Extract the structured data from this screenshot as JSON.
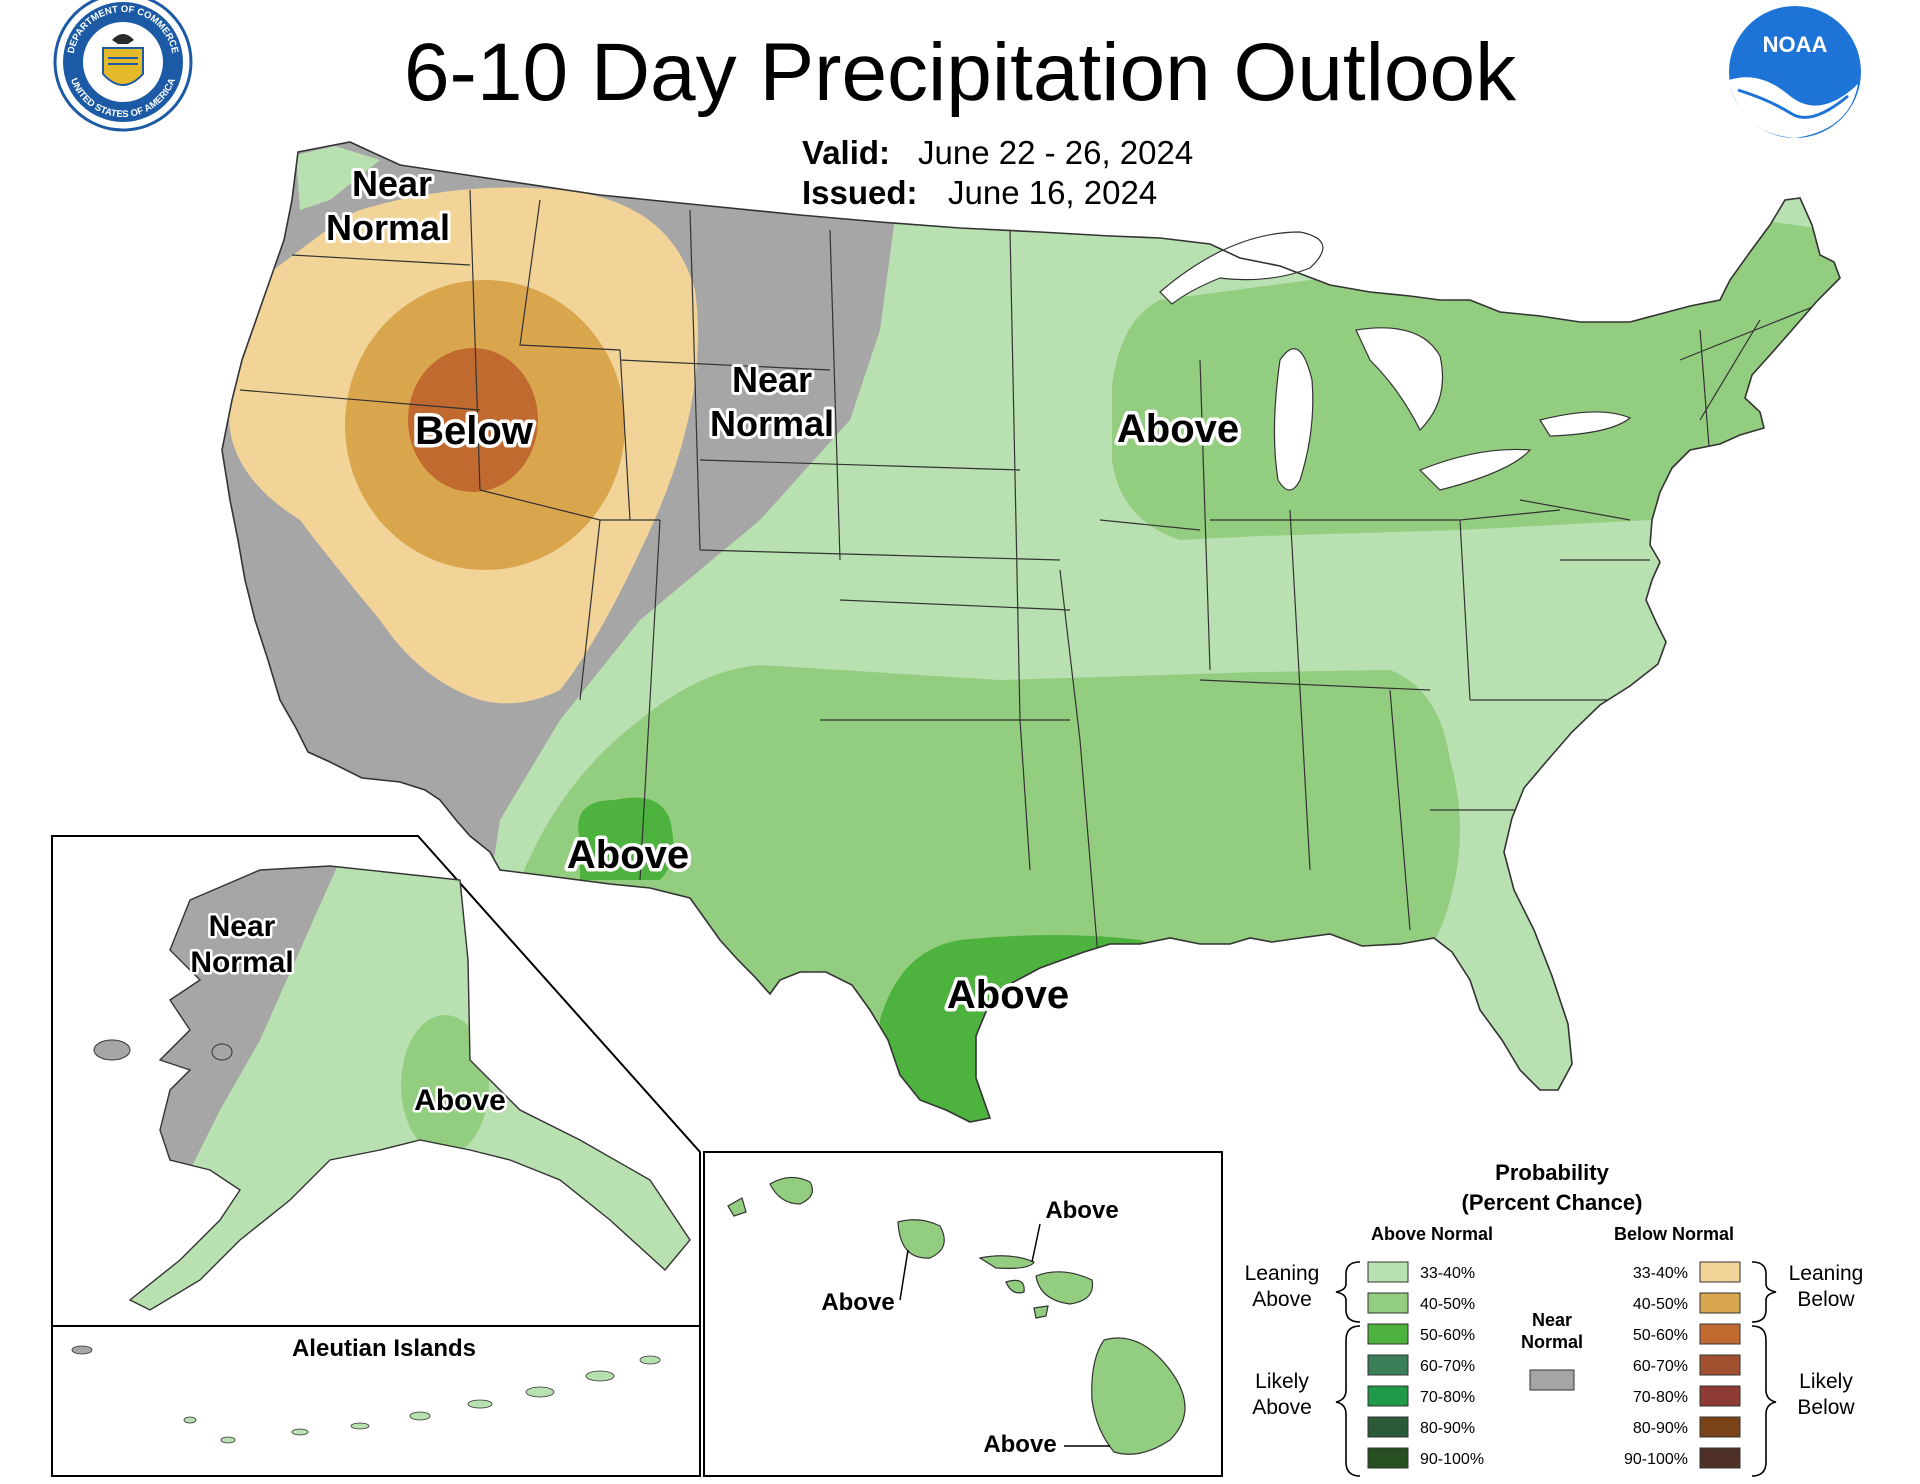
{
  "title": "6-10 Day Precipitation Outlook",
  "valid": {
    "label": "Valid:",
    "value": "June 22 - 26, 2024"
  },
  "issued": {
    "label": "Issued:",
    "value": "June 16, 2024"
  },
  "logos": {
    "left": {
      "name": "department-of-commerce-seal",
      "text_top": "DEPARTMENT OF COMMERCE",
      "text_bottom": "UNITED STATES OF AMERICA",
      "color": "#1c5aa6"
    },
    "right": {
      "name": "noaa-logo",
      "text": "NOAA",
      "color": "#1e73d6"
    }
  },
  "colors": {
    "ocean": "#ffffff",
    "lakes": "#ffffff",
    "near_normal": "#a6a6a6",
    "above_33_40": "#b8e0b0",
    "above_40_50": "#93cd7f",
    "above_50_60": "#4db23e",
    "above_60_70": "#3b7f58",
    "above_70_80": "#1f9a48",
    "above_80_90": "#2b5a37",
    "above_90_100": "#274f21",
    "below_33_40": "#f2d498",
    "below_40_50": "#d9a54d",
    "below_50_60": "#c06a30",
    "below_60_70": "#a25130",
    "below_70_80": "#8e3a35",
    "below_80_90": "#7a4317",
    "below_90_100": "#4e3027"
  },
  "conus_labels": {
    "nw_near_normal": [
      "Near",
      "Normal"
    ],
    "below": "Below",
    "plains_near_normal": [
      "Near",
      "Normal"
    ],
    "midwest_above": "Above",
    "sw_above": "Above",
    "tx_above": "Above"
  },
  "alaska_labels": {
    "near_normal": [
      "Near",
      "Normal"
    ],
    "above": "Above"
  },
  "aleutian_title": "Aleutian Islands",
  "hawaii_labels": {
    "kauai": "Above",
    "molokai": "Above",
    "big_island": "Above"
  },
  "legend": {
    "title_line1": "Probability",
    "title_line2": "(Percent Chance)",
    "above_header": "Above Normal",
    "below_header": "Below Normal",
    "above_ranges": [
      "33-40%",
      "40-50%",
      "50-60%",
      "60-70%",
      "70-80%",
      "80-90%",
      "90-100%"
    ],
    "below_ranges": [
      "33-40%",
      "40-50%",
      "50-60%",
      "60-70%",
      "70-80%",
      "80-90%",
      "90-100%"
    ],
    "leaning_above": [
      "Leaning",
      "Above"
    ],
    "likely_above": [
      "Likely",
      "Above"
    ],
    "leaning_below": [
      "Leaning",
      "Below"
    ],
    "likely_below": [
      "Likely",
      "Below"
    ],
    "near_normal": [
      "Near",
      "Normal"
    ]
  }
}
